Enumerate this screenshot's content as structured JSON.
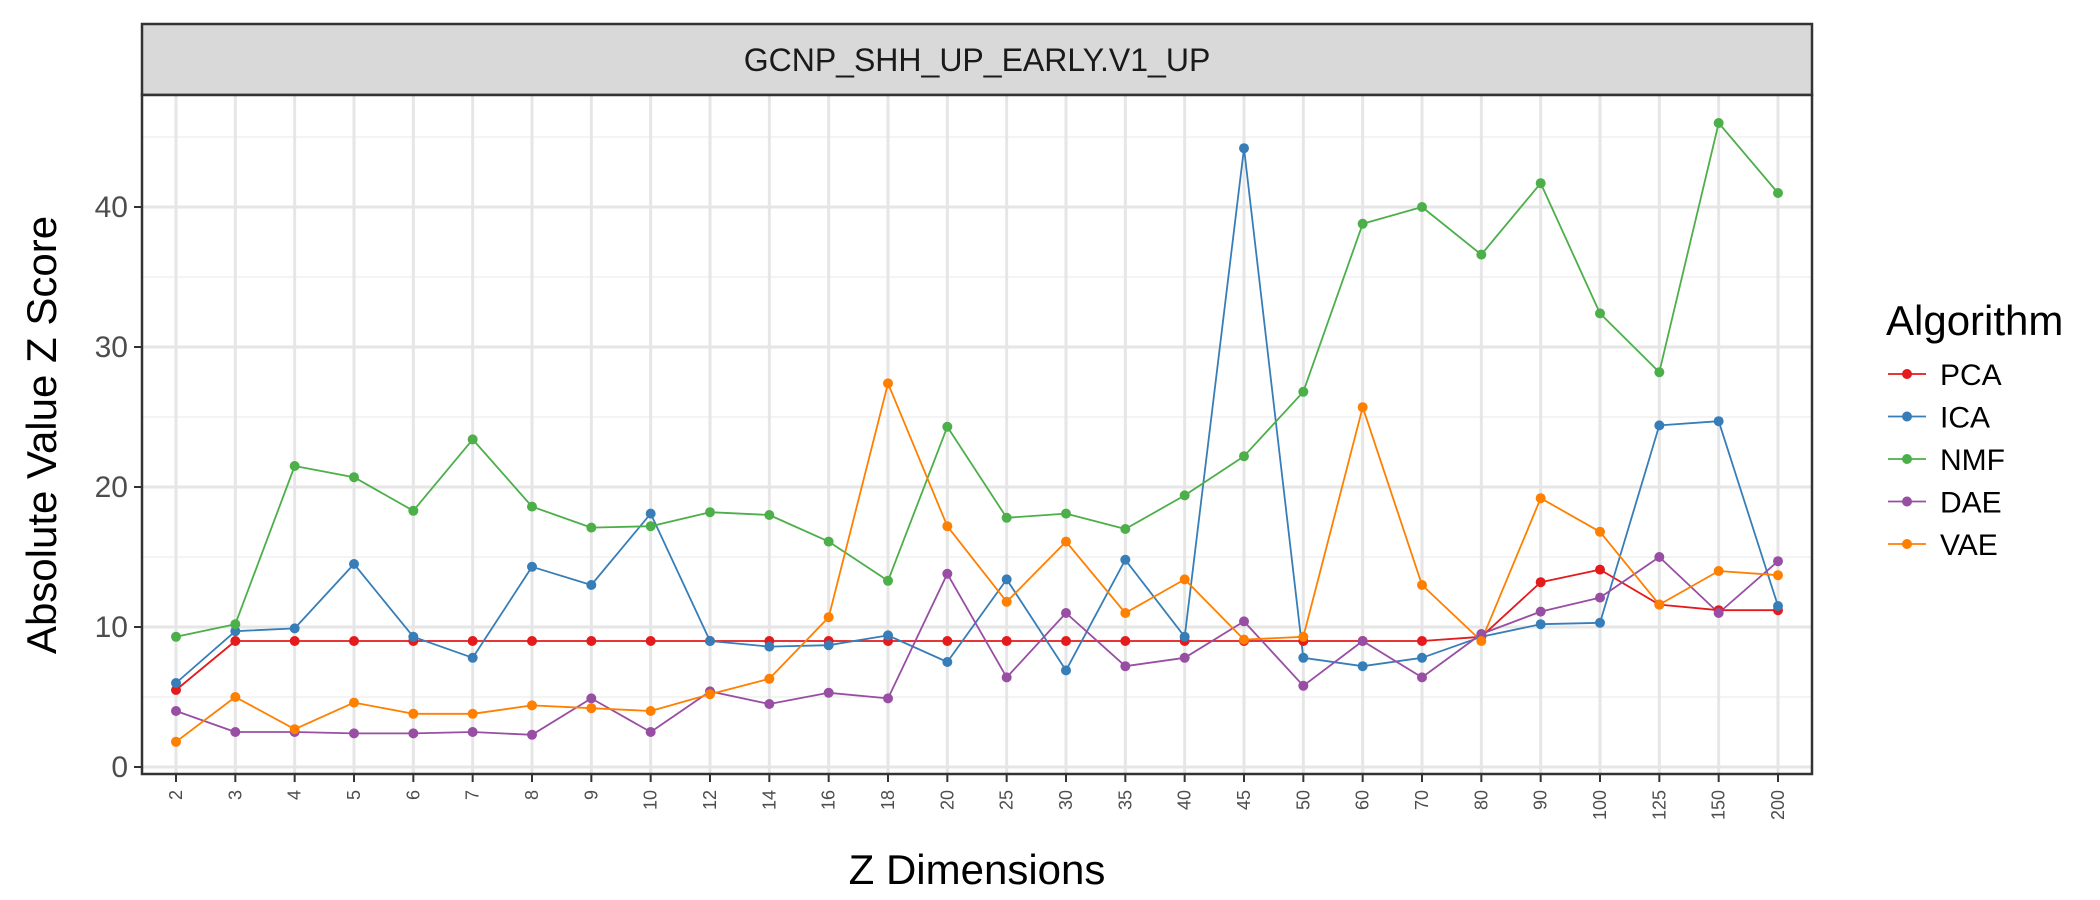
{
  "chart_data": {
    "type": "line",
    "panel_title": "GCNP_SHH_UP_EARLY.V1_UP",
    "xlabel": "Z Dimensions",
    "ylabel": "Absolute Value Z Score",
    "categories": [
      "2",
      "3",
      "4",
      "5",
      "6",
      "7",
      "8",
      "9",
      "10",
      "12",
      "14",
      "16",
      "18",
      "20",
      "25",
      "30",
      "35",
      "40",
      "45",
      "50",
      "60",
      "70",
      "80",
      "90",
      "100",
      "125",
      "150",
      "200"
    ],
    "y_ticks": [
      0,
      10,
      20,
      30,
      40
    ],
    "ylim": [
      -0.5,
      48
    ],
    "grid": true,
    "legend": {
      "title": "Algorithm",
      "position": "right"
    },
    "series": [
      {
        "name": "PCA",
        "color": "#e41a1c",
        "values": [
          5.5,
          9.0,
          9.0,
          9.0,
          9.0,
          9.0,
          9.0,
          9.0,
          9.0,
          9.0,
          9.0,
          9.0,
          9.0,
          9.0,
          9.0,
          9.0,
          9.0,
          9.0,
          9.0,
          9.0,
          9.0,
          9.0,
          9.3,
          13.2,
          14.1,
          11.6,
          11.2,
          11.2
        ]
      },
      {
        "name": "ICA",
        "color": "#377eb8",
        "values": [
          6.0,
          9.7,
          9.9,
          14.5,
          9.3,
          7.8,
          14.3,
          13.0,
          18.1,
          9.0,
          8.6,
          8.7,
          9.4,
          7.5,
          13.4,
          6.9,
          14.8,
          9.3,
          44.2,
          7.8,
          7.2,
          7.8,
          9.3,
          10.2,
          10.3,
          24.4,
          24.7,
          11.5
        ]
      },
      {
        "name": "NMF",
        "color": "#4daf4a",
        "values": [
          9.3,
          10.2,
          21.5,
          20.7,
          18.3,
          23.4,
          18.6,
          17.1,
          17.2,
          18.2,
          18.0,
          16.1,
          13.3,
          24.3,
          17.8,
          18.1,
          17.0,
          19.4,
          22.2,
          26.8,
          38.8,
          40.0,
          36.6,
          41.7,
          32.4,
          28.2,
          46.0,
          41.0
        ]
      },
      {
        "name": "DAE",
        "color": "#984ea3",
        "values": [
          4.0,
          2.5,
          2.5,
          2.4,
          2.4,
          2.5,
          2.3,
          4.9,
          2.5,
          5.4,
          4.5,
          5.3,
          4.9,
          13.8,
          6.4,
          11.0,
          7.2,
          7.8,
          10.4,
          5.8,
          9.0,
          6.4,
          9.5,
          11.1,
          12.1,
          15.0,
          11.0,
          14.7
        ]
      },
      {
        "name": "VAE",
        "color": "#ff7f00",
        "values": [
          1.8,
          5.0,
          2.7,
          4.6,
          3.8,
          3.8,
          4.4,
          4.2,
          4.0,
          5.2,
          6.3,
          10.7,
          27.4,
          17.2,
          11.8,
          16.1,
          11.0,
          13.4,
          9.1,
          9.3,
          25.7,
          13.0,
          9.0,
          19.2,
          16.8,
          11.6,
          14.0,
          13.7
        ]
      }
    ]
  }
}
